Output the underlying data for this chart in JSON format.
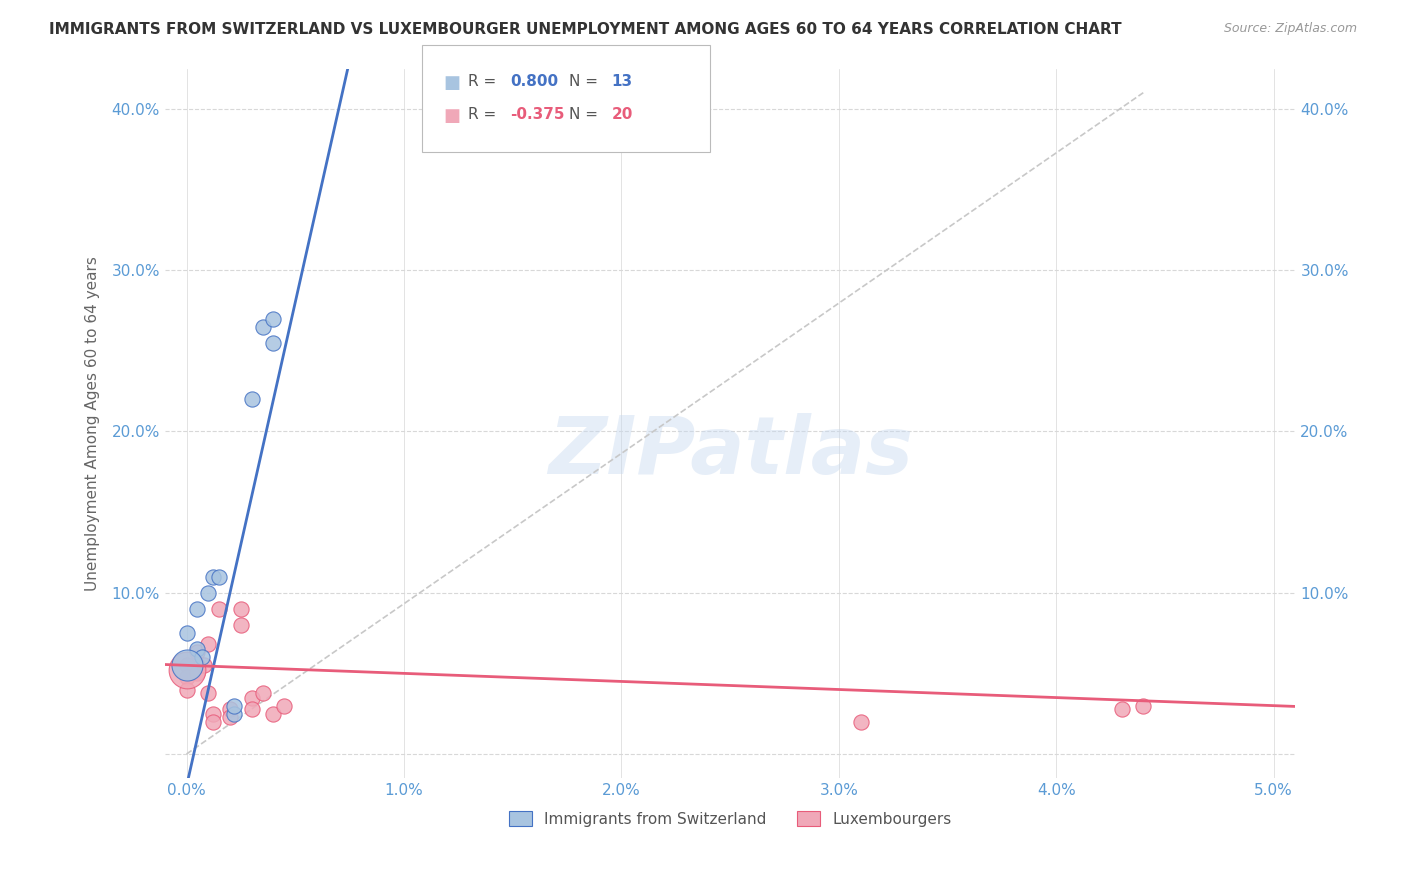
{
  "title": "IMMIGRANTS FROM SWITZERLAND VS LUXEMBOURGER UNEMPLOYMENT AMONG AGES 60 TO 64 YEARS CORRELATION CHART",
  "source": "Source: ZipAtlas.com",
  "ylabel": "Unemployment Among Ages 60 to 64 years",
  "watermark": "ZIPatlas",
  "blue_R": 0.8,
  "blue_N": 13,
  "pink_R": -0.375,
  "pink_N": 20,
  "blue_points": [
    [
      0.0,
      0.075
    ],
    [
      0.0005,
      0.09
    ],
    [
      0.0005,
      0.065
    ],
    [
      0.0007,
      0.06
    ],
    [
      0.001,
      0.1
    ],
    [
      0.0012,
      0.11
    ],
    [
      0.0015,
      0.11
    ],
    [
      0.0022,
      0.025
    ],
    [
      0.0022,
      0.03
    ],
    [
      0.003,
      0.22
    ],
    [
      0.0035,
      0.265
    ],
    [
      0.004,
      0.27
    ],
    [
      0.004,
      0.255
    ]
  ],
  "pink_points": [
    [
      0.0,
      0.055
    ],
    [
      0.0,
      0.048
    ],
    [
      0.0,
      0.04
    ],
    [
      0.0005,
      0.063
    ],
    [
      0.0005,
      0.05
    ],
    [
      0.0008,
      0.055
    ],
    [
      0.001,
      0.068
    ],
    [
      0.001,
      0.038
    ],
    [
      0.0012,
      0.025
    ],
    [
      0.0012,
      0.02
    ],
    [
      0.0015,
      0.09
    ],
    [
      0.002,
      0.028
    ],
    [
      0.002,
      0.023
    ],
    [
      0.0025,
      0.09
    ],
    [
      0.0025,
      0.08
    ],
    [
      0.003,
      0.035
    ],
    [
      0.003,
      0.028
    ],
    [
      0.0035,
      0.038
    ],
    [
      0.004,
      0.025
    ],
    [
      0.0045,
      0.03
    ]
  ],
  "blue_large_point": [
    0.0,
    0.055
  ],
  "pink_large_point": [
    0.0,
    0.052
  ],
  "pink_far_points": [
    [
      0.031,
      0.02
    ],
    [
      0.043,
      0.028
    ],
    [
      0.044,
      0.03
    ]
  ],
  "blue_color": "#a8c4e0",
  "pink_color": "#f0a8b8",
  "blue_line_color": "#4472c4",
  "pink_line_color": "#e85c7a",
  "dashed_line_color": "#c8c8c8",
  "grid_color": "#d8d8d8",
  "title_color": "#333333",
  "source_color": "#999999",
  "tick_color": "#5b9bd5",
  "xlim": [
    -0.001,
    0.051
  ],
  "ylim": [
    -0.015,
    0.425
  ],
  "xticks": [
    0.0,
    0.01,
    0.02,
    0.03,
    0.04,
    0.05
  ],
  "xtick_labels": [
    "0.0%",
    "1.0%",
    "2.0%",
    "3.0%",
    "4.0%",
    "5.0%"
  ],
  "yticks": [
    0.0,
    0.1,
    0.2,
    0.3,
    0.4
  ],
  "ytick_labels": [
    "",
    "10.0%",
    "20.0%",
    "30.0%",
    "40.0%"
  ]
}
